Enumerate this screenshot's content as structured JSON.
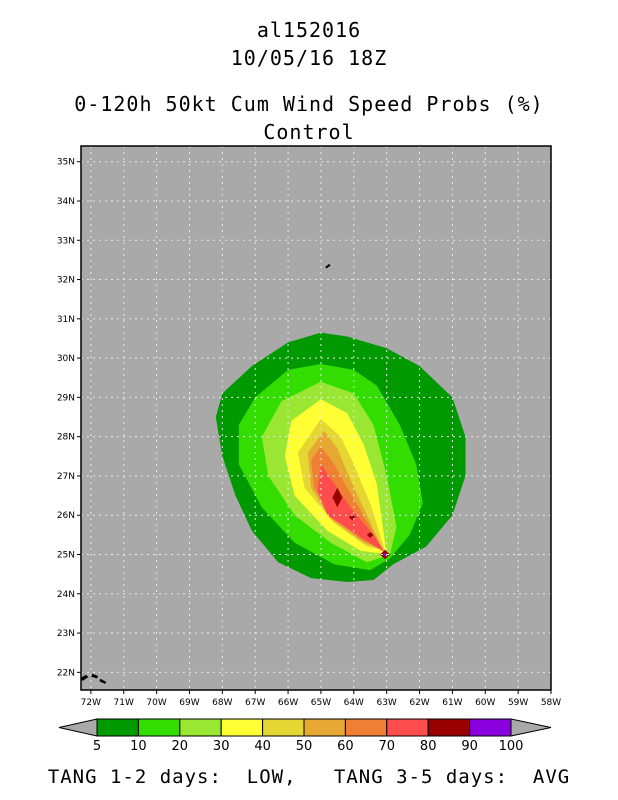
{
  "header": {
    "storm_id": "al152016",
    "datetime": "10/05/16 18Z",
    "product": "0-120h 50kt Cum Wind Speed Probs (%)",
    "run": "Control"
  },
  "footer": {
    "text": "TANG 1-2 days:  LOW,   TANG 3-5 days:  AVG"
  },
  "chart_data": {
    "type": "contour_map",
    "background_color": "#a9a9a9",
    "grid": true,
    "x": {
      "labels": [
        "72W",
        "71W",
        "70W",
        "69W",
        "68W",
        "67W",
        "66W",
        "65W",
        "64W",
        "63W",
        "62W",
        "61W",
        "60W",
        "59W",
        "58W"
      ],
      "lon_values": [
        -72,
        -71,
        -70,
        -69,
        -68,
        -67,
        -66,
        -65,
        -64,
        -63,
        -62,
        -61,
        -60,
        -59,
        -58
      ],
      "range": [
        -72.3,
        -58.0
      ]
    },
    "y": {
      "labels": [
        "22N",
        "23N",
        "24N",
        "25N",
        "26N",
        "27N",
        "28N",
        "29N",
        "30N",
        "31N",
        "32N",
        "33N",
        "34N",
        "35N"
      ],
      "lat_values": [
        22,
        23,
        24,
        25,
        26,
        27,
        28,
        29,
        30,
        31,
        32,
        33,
        34,
        35
      ],
      "range": [
        21.55,
        35.4
      ]
    },
    "colorbar": {
      "levels": [
        "5",
        "10",
        "20",
        "30",
        "40",
        "50",
        "60",
        "70",
        "80",
        "90",
        "100"
      ],
      "colors": [
        "#009900",
        "#33dd00",
        "#99e633",
        "#ffff33",
        "#e6d633",
        "#e6a833",
        "#ef8033",
        "#ff4d4d",
        "#990000",
        "#8800dd"
      ],
      "extend_color": "#a9a9a9"
    },
    "contours": [
      {
        "level": 5,
        "color": "#009900",
        "polygon": [
          [
            -65.0,
            30.65
          ],
          [
            -64.2,
            30.55
          ],
          [
            -63.0,
            30.25
          ],
          [
            -62.0,
            29.8
          ],
          [
            -61.0,
            29.0
          ],
          [
            -60.6,
            28.0
          ],
          [
            -60.6,
            27.0
          ],
          [
            -61.0,
            26.0
          ],
          [
            -61.8,
            25.2
          ],
          [
            -62.8,
            24.75
          ],
          [
            -63.4,
            24.35
          ],
          [
            -64.2,
            24.3
          ],
          [
            -65.3,
            24.4
          ],
          [
            -66.3,
            24.8
          ],
          [
            -67.1,
            25.6
          ],
          [
            -67.6,
            26.5
          ],
          [
            -68.0,
            27.5
          ],
          [
            -68.2,
            28.5
          ],
          [
            -68.0,
            29.1
          ],
          [
            -67.1,
            29.8
          ],
          [
            -66.0,
            30.4
          ]
        ]
      },
      {
        "level": 10,
        "color": "#33dd00",
        "polygon": [
          [
            -65.0,
            29.85
          ],
          [
            -64.0,
            29.7
          ],
          [
            -63.3,
            29.3
          ],
          [
            -62.6,
            28.3
          ],
          [
            -62.1,
            27.3
          ],
          [
            -61.9,
            26.3
          ],
          [
            -62.3,
            25.5
          ],
          [
            -62.9,
            24.9
          ],
          [
            -63.5,
            24.6
          ],
          [
            -64.6,
            24.75
          ],
          [
            -65.8,
            25.3
          ],
          [
            -66.8,
            26.2
          ],
          [
            -67.5,
            27.3
          ],
          [
            -67.5,
            28.3
          ],
          [
            -67.0,
            29.0
          ],
          [
            -66.0,
            29.7
          ]
        ]
      },
      {
        "level": 20,
        "color": "#99e633",
        "polygon": [
          [
            -65.0,
            29.4
          ],
          [
            -64.0,
            29.1
          ],
          [
            -63.4,
            28.3
          ],
          [
            -63.0,
            27.0
          ],
          [
            -62.7,
            25.7
          ],
          [
            -62.9,
            25.0
          ],
          [
            -63.6,
            24.8
          ],
          [
            -64.7,
            25.3
          ],
          [
            -65.8,
            26.0
          ],
          [
            -66.6,
            27.0
          ],
          [
            -66.8,
            28.0
          ],
          [
            -66.2,
            28.9
          ]
        ]
      },
      {
        "level": 30,
        "color": "#ffff33",
        "polygon": [
          [
            -65.0,
            28.95
          ],
          [
            -64.2,
            28.6
          ],
          [
            -63.7,
            27.8
          ],
          [
            -63.3,
            26.8
          ],
          [
            -63.1,
            25.6
          ],
          [
            -63.0,
            25.0
          ],
          [
            -63.8,
            25.1
          ],
          [
            -64.8,
            25.6
          ],
          [
            -65.8,
            26.5
          ],
          [
            -66.1,
            27.5
          ],
          [
            -65.9,
            28.4
          ]
        ]
      },
      {
        "level": 40,
        "color": "#e6d633",
        "polygon": [
          [
            -65.0,
            28.45
          ],
          [
            -64.4,
            28.0
          ],
          [
            -64.0,
            27.3
          ],
          [
            -63.5,
            26.3
          ],
          [
            -63.05,
            25.1
          ],
          [
            -63.6,
            25.2
          ],
          [
            -64.6,
            25.8
          ],
          [
            -65.5,
            26.7
          ],
          [
            -65.7,
            27.6
          ]
        ]
      },
      {
        "level": 50,
        "color": "#e6a833",
        "polygon": [
          [
            -64.9,
            28.15
          ],
          [
            -64.5,
            27.7
          ],
          [
            -64.1,
            26.9
          ],
          [
            -63.6,
            26.0
          ],
          [
            -63.1,
            25.1
          ],
          [
            -63.7,
            25.3
          ],
          [
            -64.7,
            25.9
          ],
          [
            -65.3,
            26.7
          ],
          [
            -65.4,
            27.6
          ]
        ]
      },
      {
        "level": 60,
        "color": "#ef8033",
        "polygon": [
          [
            -65.0,
            27.75
          ],
          [
            -64.6,
            27.3
          ],
          [
            -64.2,
            26.7
          ],
          [
            -63.5,
            25.7
          ],
          [
            -63.1,
            25.1
          ],
          [
            -63.8,
            25.4
          ],
          [
            -64.7,
            26.0
          ],
          [
            -65.2,
            26.7
          ],
          [
            -65.3,
            27.4
          ]
        ]
      },
      {
        "level": 70,
        "color": "#ff4d4d",
        "polygon": [
          [
            -65.0,
            27.3
          ],
          [
            -64.6,
            26.8
          ],
          [
            -64.1,
            26.2
          ],
          [
            -63.4,
            25.5
          ],
          [
            -63.05,
            25.05
          ],
          [
            -63.9,
            25.5
          ],
          [
            -64.8,
            26.0
          ],
          [
            -65.1,
            26.6
          ]
        ]
      },
      {
        "level": 80,
        "color": "#990000",
        "polygon": [
          [
            -64.5,
            26.7
          ],
          [
            -64.35,
            26.45
          ],
          [
            -64.5,
            26.2
          ],
          [
            -64.65,
            26.45
          ]
        ]
      },
      {
        "level": 80,
        "color": "#990000",
        "polygon": [
          [
            -64.05,
            26.02
          ],
          [
            -63.95,
            25.95
          ],
          [
            -64.05,
            25.87
          ],
          [
            -64.15,
            25.95
          ]
        ]
      },
      {
        "level": 80,
        "color": "#990000",
        "polygon": [
          [
            -63.5,
            25.57
          ],
          [
            -63.4,
            25.5
          ],
          [
            -63.5,
            25.42
          ],
          [
            -63.6,
            25.5
          ]
        ]
      },
      {
        "level": 80,
        "color": "#990000",
        "polygon": [
          [
            -63.05,
            25.12
          ],
          [
            -62.9,
            25.0
          ],
          [
            -63.05,
            24.88
          ],
          [
            -63.2,
            25.0
          ]
        ]
      },
      {
        "level": 90,
        "color": "#8800dd",
        "polygon": [
          [
            -63.05,
            25.05
          ],
          [
            -63.0,
            25.0
          ],
          [
            -63.05,
            24.95
          ],
          [
            -63.1,
            25.0
          ]
        ]
      }
    ],
    "land": [
      {
        "name": "bermuda",
        "polygon": [
          [
            -64.85,
            32.32
          ],
          [
            -64.75,
            32.38
          ],
          [
            -64.73,
            32.36
          ],
          [
            -64.83,
            32.3
          ]
        ]
      },
      {
        "name": "bahamas-1",
        "polygon": [
          [
            -72.3,
            21.85
          ],
          [
            -72.15,
            21.92
          ],
          [
            -72.1,
            21.88
          ],
          [
            -72.25,
            21.8
          ]
        ]
      },
      {
        "name": "bahamas-2",
        "polygon": [
          [
            -71.95,
            21.95
          ],
          [
            -71.8,
            21.9
          ],
          [
            -71.82,
            21.86
          ],
          [
            -71.97,
            21.9
          ]
        ]
      },
      {
        "name": "bahamas-3",
        "polygon": [
          [
            -71.7,
            21.82
          ],
          [
            -71.55,
            21.75
          ],
          [
            -71.58,
            21.72
          ],
          [
            -71.72,
            21.78
          ]
        ]
      }
    ]
  }
}
